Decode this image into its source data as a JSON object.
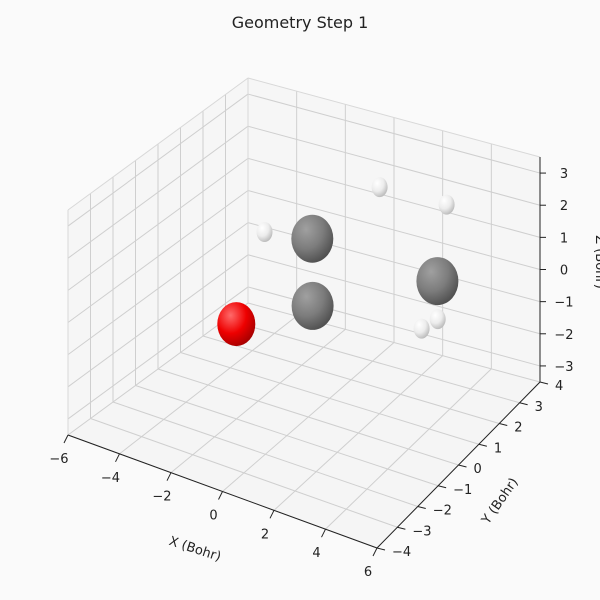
{
  "chart_data": {
    "type": "scatter3d",
    "title": "Geometry Step 1",
    "xlabel": "X (Bohr)",
    "ylabel": "Y (Bohr)",
    "zlabel": "Z (Bohr)",
    "xlim": [
      -6,
      6
    ],
    "ylim": [
      -4,
      4
    ],
    "zlim": [
      -3.5,
      3.5
    ],
    "xticks": [
      -6,
      -4,
      -2,
      0,
      2,
      4,
      6
    ],
    "yticks": [
      -4,
      -3,
      -2,
      -1,
      0,
      1,
      2,
      3,
      4
    ],
    "zticks": [
      -3,
      -2,
      -1,
      0,
      1,
      2,
      3
    ],
    "grid": true,
    "atoms": [
      {
        "element": "O",
        "color": "#ff0000",
        "x": -1.4,
        "y": -1.7,
        "z": 0.0
      },
      {
        "element": "C",
        "color": "#808080",
        "x": 0.6,
        "y": -0.5,
        "z": 0.4
      },
      {
        "element": "C",
        "color": "#808080",
        "x": -0.7,
        "y": 1.0,
        "z": 1.3
      },
      {
        "element": "C",
        "color": "#808080",
        "x": 2.9,
        "y": 2.7,
        "z": -0.2
      },
      {
        "element": "H",
        "color": "#ffffff",
        "x": -2.8,
        "y": 1.2,
        "z": 0.9
      },
      {
        "element": "H",
        "color": "#ffffff",
        "x": 0.2,
        "y": 3.1,
        "z": 1.9
      },
      {
        "element": "H",
        "color": "#ffffff",
        "x": 1.9,
        "y": 4.3,
        "z": 1.0
      },
      {
        "element": "H",
        "color": "#ffffff",
        "x": 3.0,
        "y": 2.6,
        "z": -1.3
      },
      {
        "element": "H",
        "color": "#ffffff",
        "x": 2.6,
        "y": 2.3,
        "z": -1.5
      }
    ]
  }
}
